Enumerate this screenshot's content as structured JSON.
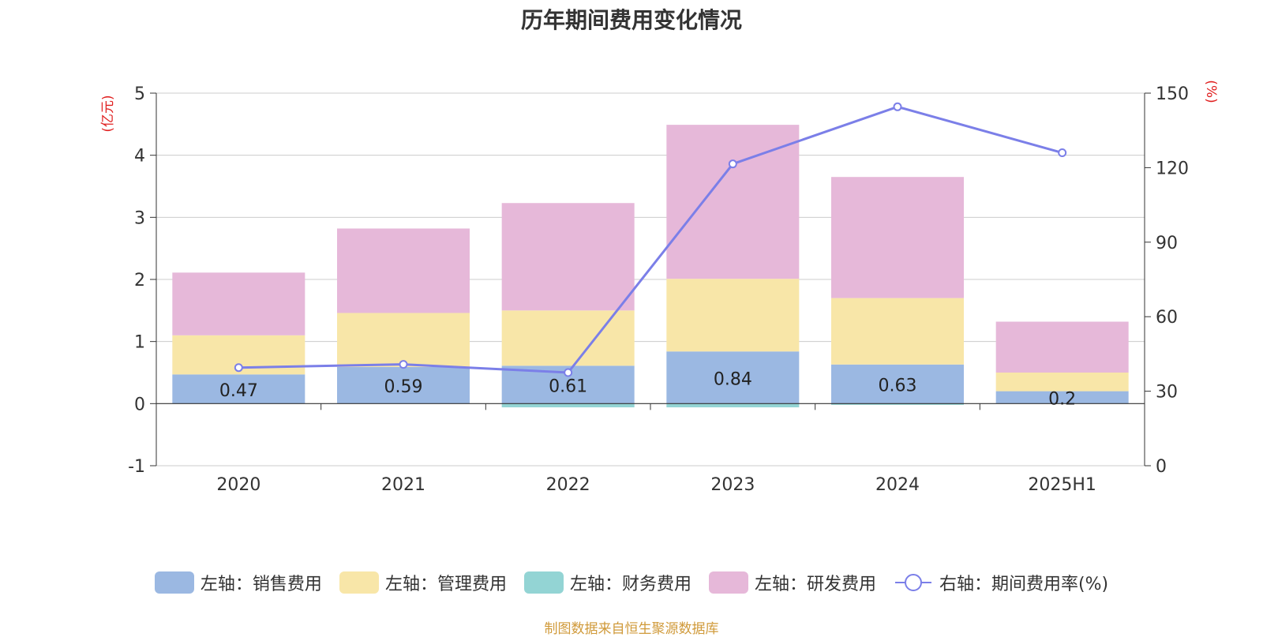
{
  "chart_data": {
    "type": "bar",
    "title": "历年期间费用变化情况",
    "categories": [
      "2020",
      "2021",
      "2022",
      "2023",
      "2024",
      "2025H1"
    ],
    "y_left": {
      "unit": "(亿元)",
      "ylim": [
        -1,
        5
      ],
      "ticks": [
        -1,
        0,
        1,
        2,
        3,
        4,
        5
      ]
    },
    "y_right": {
      "unit": "(%)",
      "ylim": [
        0,
        150
      ],
      "ticks": [
        0,
        30,
        60,
        90,
        120,
        150
      ]
    },
    "series": [
      {
        "name": "左轴：销售费用",
        "axis": "left",
        "type": "bar",
        "color": "#9bb8e2",
        "values": [
          0.47,
          0.59,
          0.61,
          0.84,
          0.63,
          0.2
        ],
        "labels": [
          "0.47",
          "0.59",
          "0.61",
          "0.84",
          "0.63",
          "0.2"
        ]
      },
      {
        "name": "左轴：管理费用",
        "axis": "left",
        "type": "bar",
        "color": "#f8e6a8",
        "values": [
          0.63,
          0.87,
          0.89,
          1.17,
          1.07,
          0.3
        ]
      },
      {
        "name": "左轴：财务费用",
        "axis": "left",
        "type": "bar",
        "color": "#93d4d4",
        "values": [
          0.0,
          0.0,
          -0.06,
          -0.06,
          -0.02,
          0.0
        ]
      },
      {
        "name": "左轴：研发费用",
        "axis": "left",
        "type": "bar",
        "color": "#e6b8d9",
        "values": [
          1.01,
          1.36,
          1.73,
          2.48,
          1.95,
          0.82
        ]
      },
      {
        "name": "右轴：期间费用率(%)",
        "axis": "right",
        "type": "line",
        "color": "#7b7fe8",
        "values": [
          39.5,
          40.8,
          37.5,
          121.5,
          144.5,
          126
        ]
      }
    ],
    "grid": true,
    "legend_position": "bottom"
  },
  "footer": {
    "source": "制图数据来自恒生聚源数据库"
  },
  "colors": {
    "axis_unit": "#e02020",
    "axis_text": "#333333",
    "grid": "#cccccc"
  }
}
